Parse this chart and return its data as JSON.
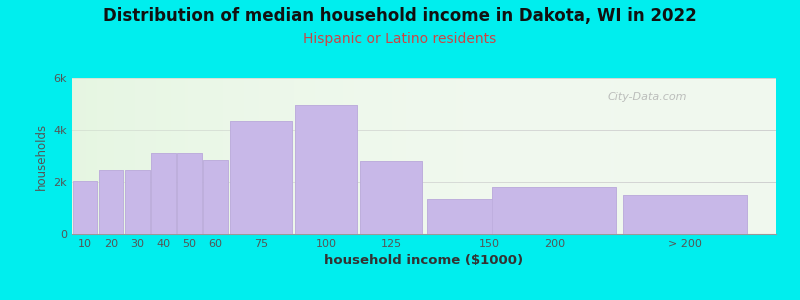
{
  "title": "Distribution of median household income in Dakota, WI in 2022",
  "subtitle": "Hispanic or Latino residents",
  "xlabel": "household income ($1000)",
  "ylabel": "households",
  "title_fontsize": 12,
  "subtitle_fontsize": 10,
  "subtitle_color": "#cc4444",
  "bar_color": "#c8b8e8",
  "bar_edge_color": "#b8a8d8",
  "background_color": "#00eeee",
  "categories": [
    "10",
    "20",
    "30",
    "40",
    "50",
    "60",
    "75",
    "100",
    "125",
    "150",
    "200",
    "> 200"
  ],
  "values": [
    2050,
    2450,
    2450,
    3100,
    3100,
    2850,
    4350,
    4950,
    2800,
    1350,
    1800,
    1500
  ],
  "bar_widths": [
    10,
    10,
    10,
    10,
    10,
    10,
    25,
    25,
    25,
    50,
    50,
    50
  ],
  "bar_lefts": [
    5,
    15,
    25,
    35,
    45,
    55,
    65,
    90,
    115,
    140,
    165,
    215
  ],
  "ylim": [
    0,
    6000
  ],
  "ytick_labels": [
    "0",
    "2k",
    "4k",
    "6k"
  ],
  "ytick_values": [
    0,
    2000,
    4000,
    6000
  ],
  "xlim": [
    5,
    275
  ],
  "watermark": "City-Data.com"
}
